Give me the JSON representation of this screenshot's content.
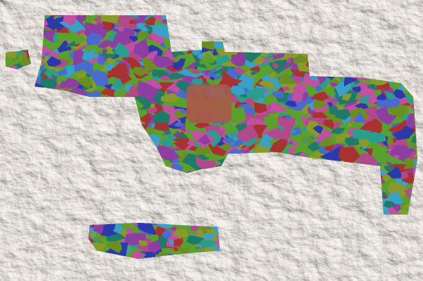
{
  "map": {
    "basemap": "shaded-relief",
    "background_color": "#f2f0ed",
    "relief_shadow_color": "#c9beb6",
    "highlight_patch_color": "#a85a4a",
    "unit_colors": [
      "#8e3ea0",
      "#5aa02c",
      "#2a9d8f",
      "#2b3aa8",
      "#a83232",
      "#8a9a2a",
      "#3aa0c8",
      "#c050a0",
      "#6b8e23",
      "#1f7a6a",
      "#b04a8a",
      "#4a6ad0"
    ]
  }
}
